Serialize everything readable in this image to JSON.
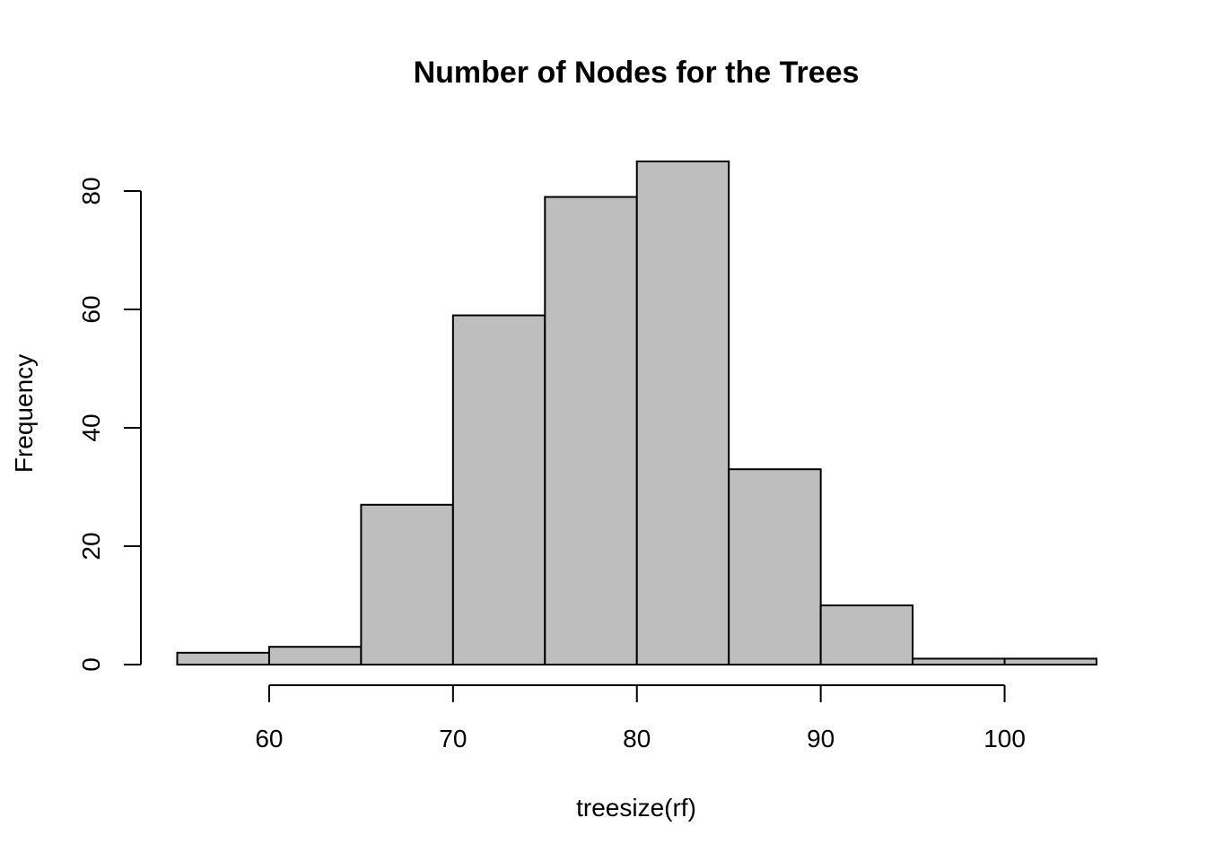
{
  "chart_data": {
    "type": "bar",
    "subtype": "histogram",
    "title": "Number of Nodes for the Trees",
    "xlabel": "treesize(rf)",
    "ylabel": "Frequency",
    "bins": [
      {
        "start": 55,
        "end": 60,
        "count": 2
      },
      {
        "start": 60,
        "end": 65,
        "count": 3
      },
      {
        "start": 65,
        "end": 70,
        "count": 27
      },
      {
        "start": 70,
        "end": 75,
        "count": 59
      },
      {
        "start": 75,
        "end": 80,
        "count": 79
      },
      {
        "start": 80,
        "end": 85,
        "count": 85
      },
      {
        "start": 85,
        "end": 90,
        "count": 33
      },
      {
        "start": 90,
        "end": 95,
        "count": 10
      },
      {
        "start": 95,
        "end": 100,
        "count": 1
      },
      {
        "start": 100,
        "end": 105,
        "count": 1
      }
    ],
    "xticks": [
      60,
      70,
      80,
      90,
      100
    ],
    "yticks": [
      0,
      20,
      40,
      60,
      80
    ],
    "xlim": [
      55,
      105
    ],
    "ylim": [
      0,
      85
    ],
    "bar_color": "#bebebe",
    "edge_color": "#000000",
    "grid": false,
    "legend": false
  }
}
